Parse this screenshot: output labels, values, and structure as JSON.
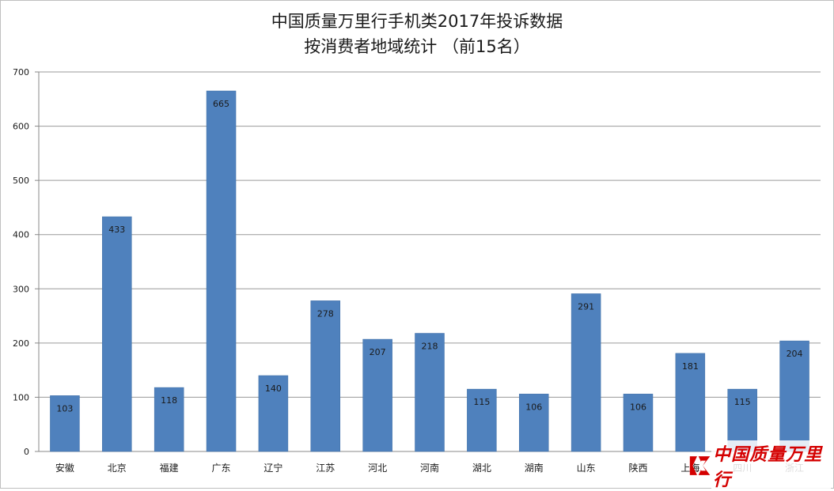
{
  "chart_data": {
    "type": "bar",
    "title": "中国质量万里行手机类2017年投诉数据",
    "subtitle": "按消费者地域统计 （前15名）",
    "categories": [
      "安徽",
      "北京",
      "福建",
      "广东",
      "辽宁",
      "江苏",
      "河北",
      "河南",
      "湖北",
      "湖南",
      "山东",
      "陕西",
      "上海",
      "四川",
      "浙江"
    ],
    "values": [
      103,
      433,
      118,
      665,
      140,
      278,
      207,
      218,
      115,
      106,
      291,
      106,
      181,
      115,
      204
    ],
    "ylim": [
      0,
      700
    ],
    "yticks": [
      0,
      100,
      200,
      300,
      400,
      500,
      600,
      700
    ],
    "grid": true,
    "bar_color": "#4f81bd",
    "data_labels": true
  },
  "watermark": {
    "text": "中国质量万里行",
    "color": "#d40000"
  }
}
